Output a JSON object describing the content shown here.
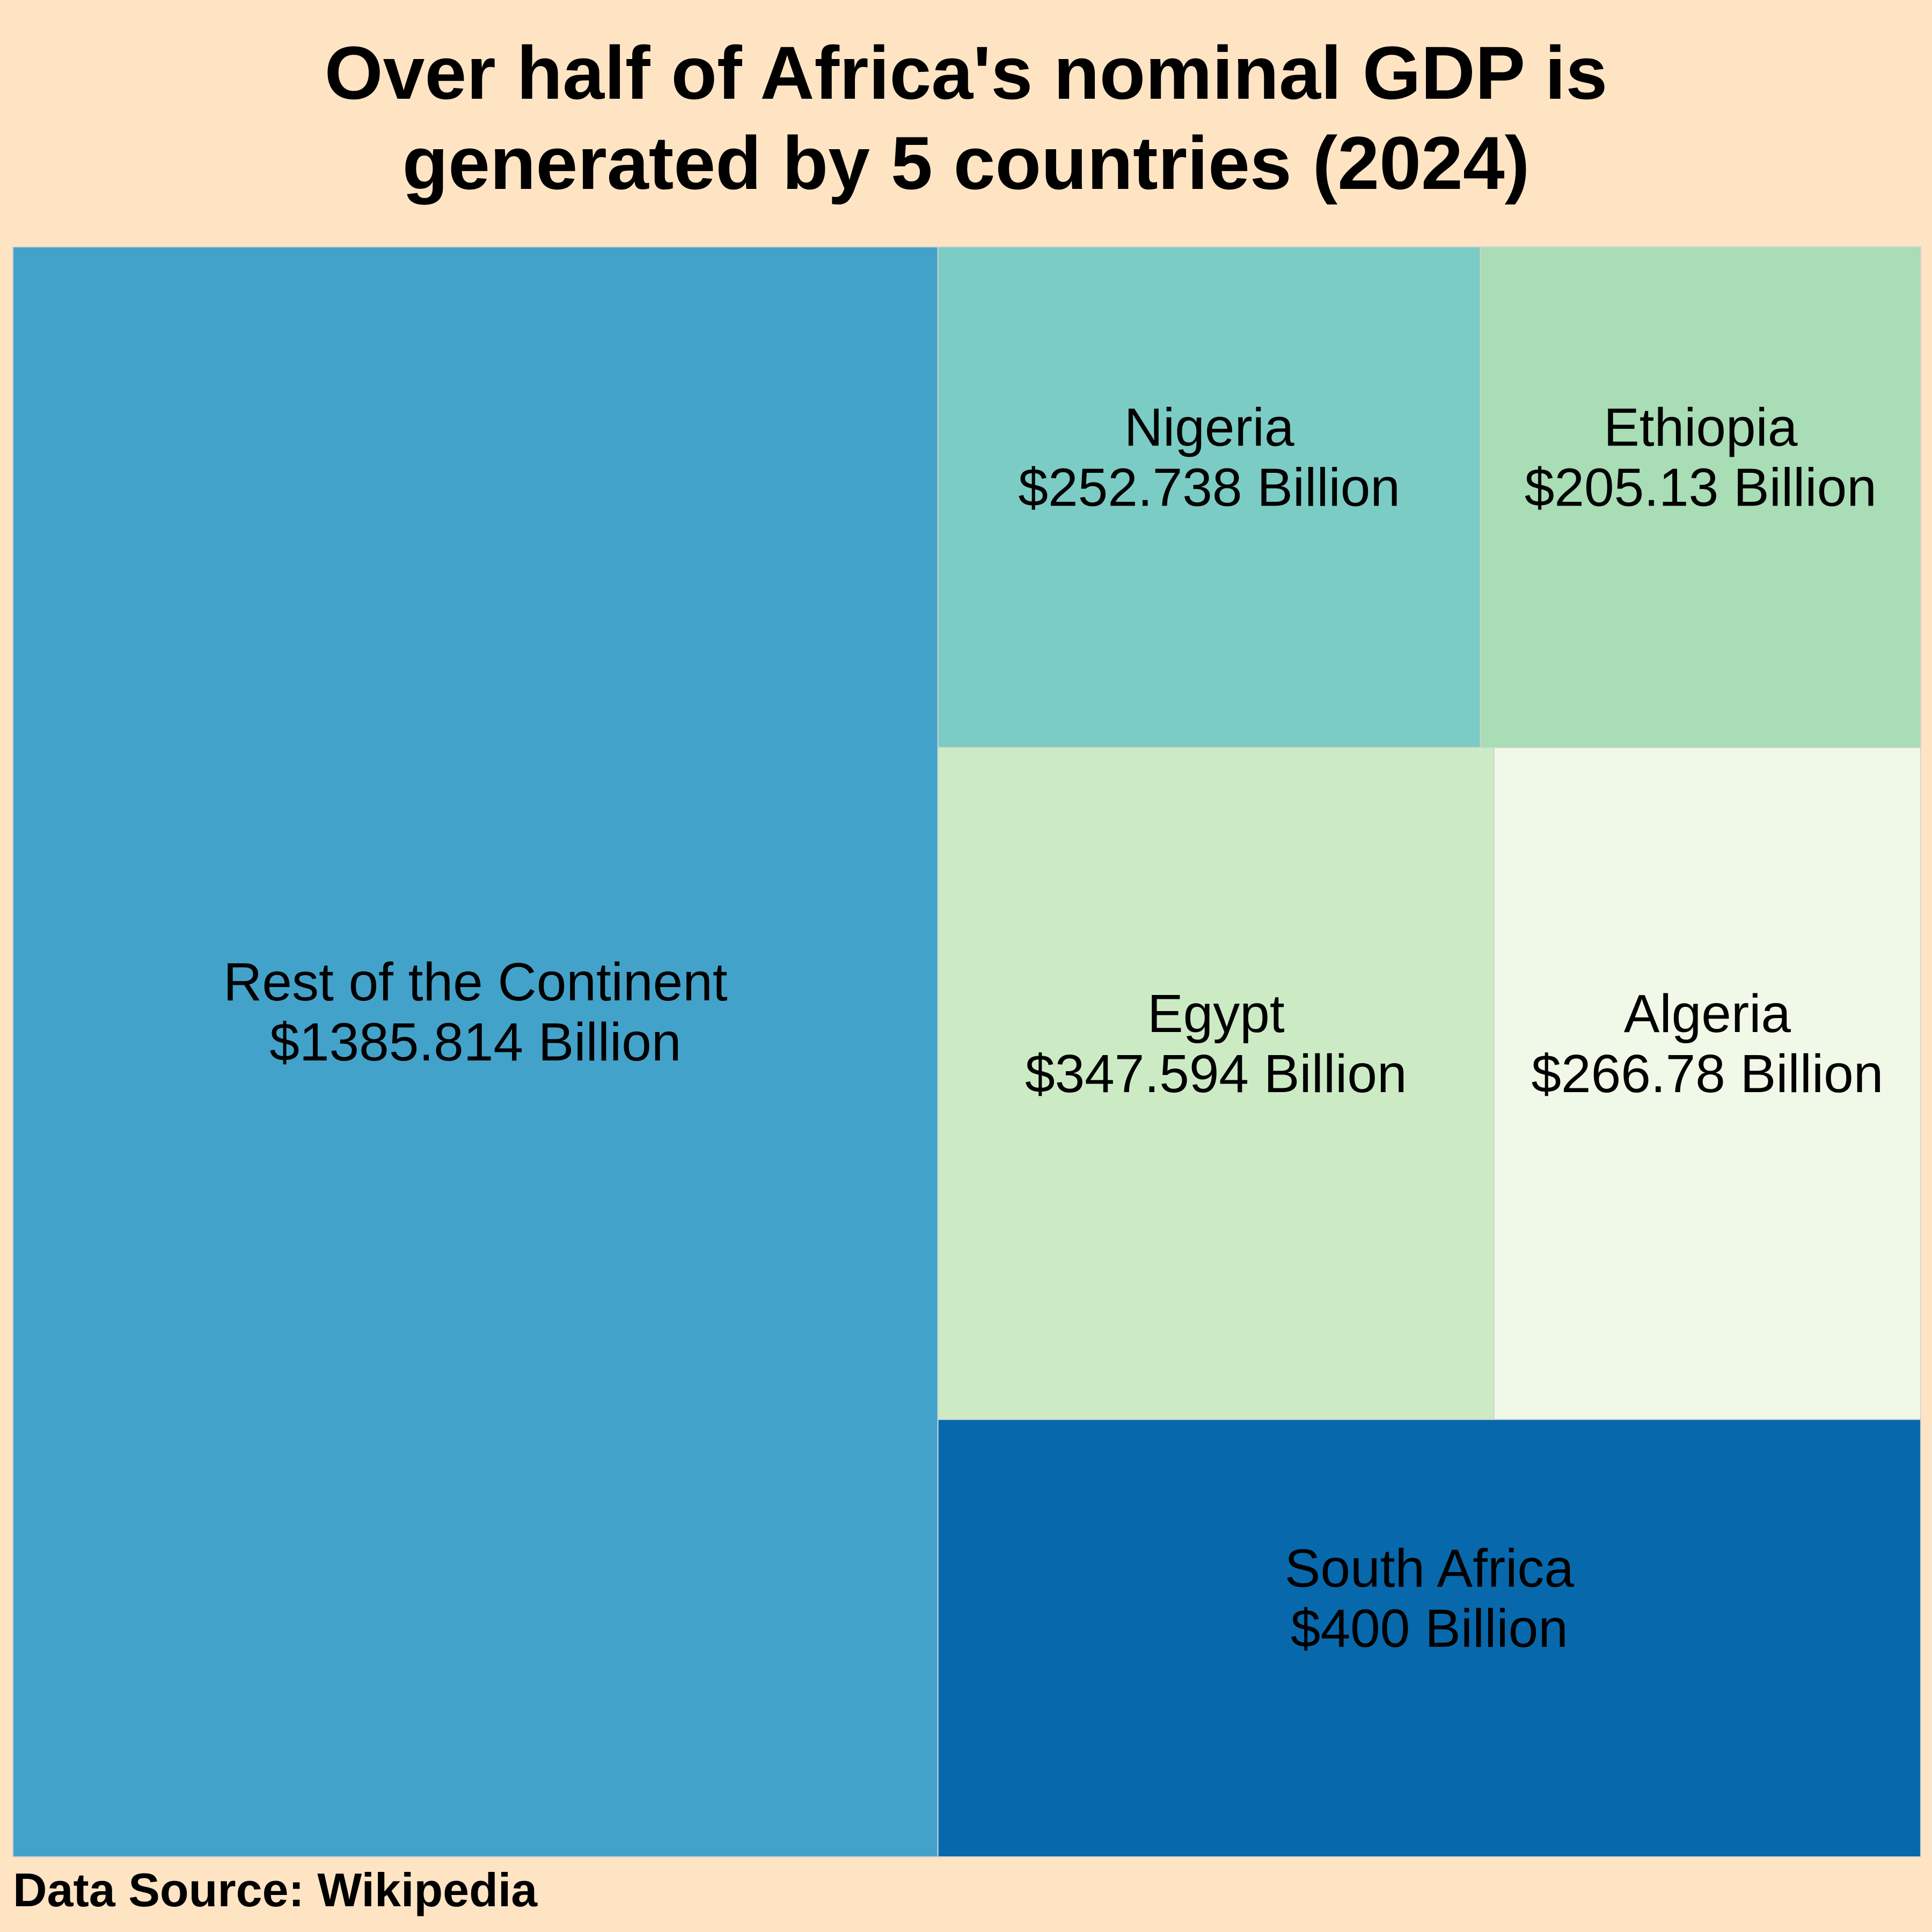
{
  "chart_data": {
    "type": "treemap",
    "title_lines": [
      "Over half of Africa's nominal GDP is",
      "generated by 5 countries (2024)"
    ],
    "items": [
      {
        "name": "Rest of the Continent",
        "value": 1385.814,
        "label": "$1385.814 Billion",
        "color": "#43A2CA"
      },
      {
        "name": "Nigeria",
        "value": 252.738,
        "label": "$252.738 Billion",
        "color": "#7BCCC4"
      },
      {
        "name": "Ethiopia",
        "value": 205.13,
        "label": "$205.13 Billion",
        "color": "#A8DDB5"
      },
      {
        "name": "Egypt",
        "value": 347.594,
        "label": "$347.594 Billion",
        "color": "#CCEBC5"
      },
      {
        "name": "Algeria",
        "value": 266.78,
        "label": "$266.78 Billion",
        "color": "#F0F9E8"
      },
      {
        "name": "South Africa",
        "value": 400,
        "label": "$400 Billion",
        "color": "#0868AC"
      }
    ],
    "source": "Data Source: Wikipedia"
  },
  "colors": {
    "background": "#FFE4C4",
    "tile_border": "#D3D3D3"
  }
}
